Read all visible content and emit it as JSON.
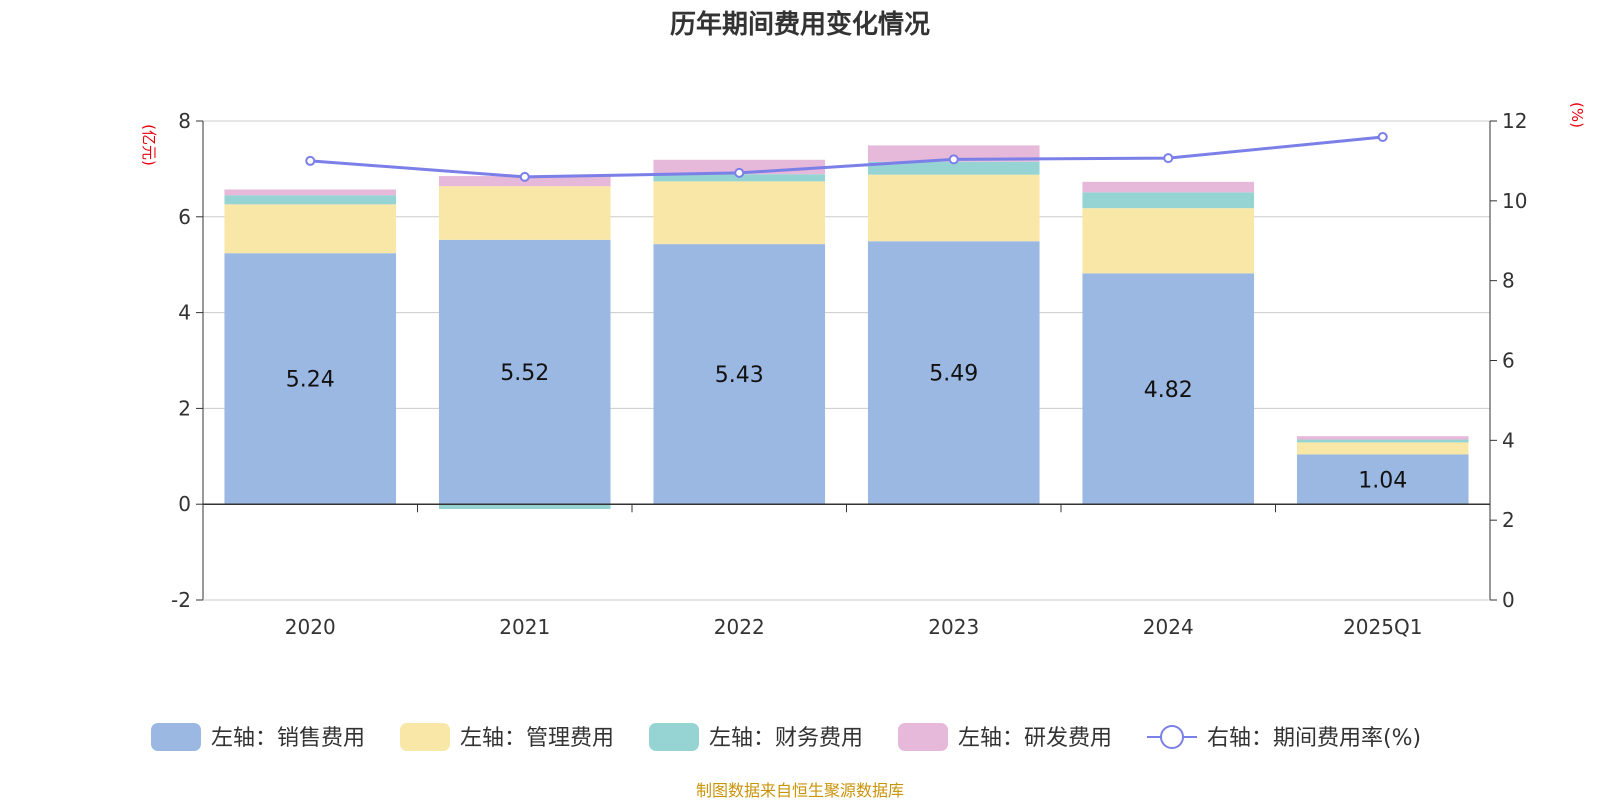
{
  "chart_data": {
    "type": "bar",
    "title": "历年期间费用变化情况",
    "categories": [
      "2020",
      "2021",
      "2022",
      "2023",
      "2024",
      "2025Q1"
    ],
    "left_axis": {
      "unit_label": "(亿元)",
      "ylim": [
        -2,
        8
      ],
      "ticks": [
        -2,
        0,
        2,
        4,
        6,
        8
      ]
    },
    "right_axis": {
      "unit_label": "(%)",
      "ylim": [
        0,
        12
      ],
      "ticks": [
        0,
        2,
        4,
        6,
        8,
        10,
        12
      ]
    },
    "series": [
      {
        "name": "左轴：销售费用",
        "kind": "bar",
        "axis": "left",
        "color": "#9bb8e2",
        "values": [
          5.24,
          5.52,
          5.43,
          5.49,
          4.82,
          1.04
        ],
        "show_labels": true
      },
      {
        "name": "左轴：管理费用",
        "kind": "bar",
        "axis": "left",
        "color": "#f8e7a6",
        "values": [
          1.02,
          1.12,
          1.31,
          1.39,
          1.36,
          0.25
        ]
      },
      {
        "name": "左轴：财务费用",
        "kind": "bar",
        "axis": "left",
        "color": "#96d4d4",
        "values": [
          0.19,
          -0.1,
          0.15,
          0.27,
          0.33,
          0.06
        ]
      },
      {
        "name": "左轴：研发费用",
        "kind": "bar",
        "axis": "left",
        "color": "#e6b8d9",
        "values": [
          0.12,
          0.21,
          0.3,
          0.34,
          0.22,
          0.07
        ]
      },
      {
        "name": "右轴：期间费用率(%)",
        "kind": "line",
        "axis": "right",
        "color": "#7b7fe8",
        "values": [
          11.0,
          10.6,
          10.7,
          11.04,
          11.07,
          11.6
        ]
      }
    ],
    "legend_position": "bottom",
    "grid": true,
    "source": "制图数据来自恒生聚源数据库"
  }
}
